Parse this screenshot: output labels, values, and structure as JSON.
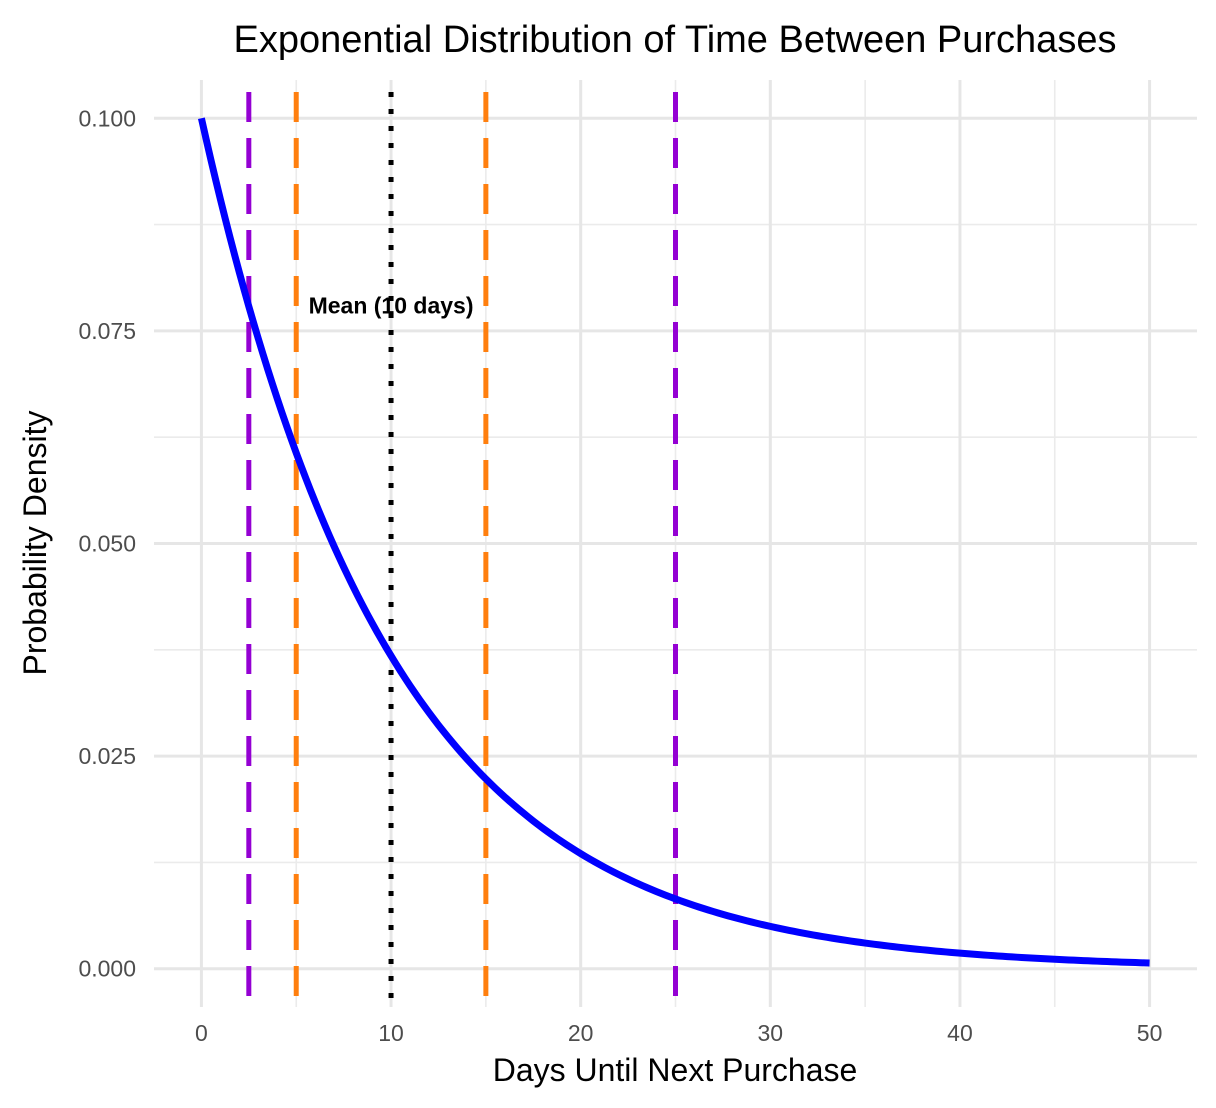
{
  "chart_data": {
    "type": "line",
    "title": "Exponential Distribution of Time Between Purchases",
    "xlabel": "Days Until Next Purchase",
    "ylabel": "Probability Density",
    "xlim": [
      -2.5,
      52.5
    ],
    "ylim": [
      -0.0045,
      0.1045
    ],
    "x_ticks": [
      0,
      10,
      20,
      30,
      40,
      50
    ],
    "x_tick_labels": [
      "0",
      "10",
      "20",
      "30",
      "40",
      "50"
    ],
    "x_minor_ticks": [
      5,
      15,
      25,
      35,
      45
    ],
    "y_ticks": [
      0,
      0.025,
      0.05,
      0.075,
      0.1
    ],
    "y_tick_labels": [
      "0.000",
      "0.025",
      "0.050",
      "0.075",
      "0.100"
    ],
    "y_minor_ticks": [
      0.0125,
      0.0375,
      0.0625,
      0.0875
    ],
    "grid": true,
    "series": [
      {
        "color": "#0000ff",
        "rate": 0.1,
        "x_range": [
          0,
          50
        ],
        "formula": "0.1 * exp(-0.1 * x)"
      }
    ],
    "vlines": [
      {
        "x": 2.5,
        "color": "#9400d3",
        "style": "dashed"
      },
      {
        "x": 25,
        "color": "#9400d3",
        "style": "dashed"
      },
      {
        "x": 5,
        "color": "#ff7f0e",
        "style": "dashed"
      },
      {
        "x": 15,
        "color": "#ff7f0e",
        "style": "dashed"
      },
      {
        "x": 10,
        "color": "#000000",
        "style": "dotted"
      }
    ],
    "annotations": [
      {
        "text": "Mean (10 days)",
        "x": 10,
        "y": 0.078
      }
    ]
  }
}
